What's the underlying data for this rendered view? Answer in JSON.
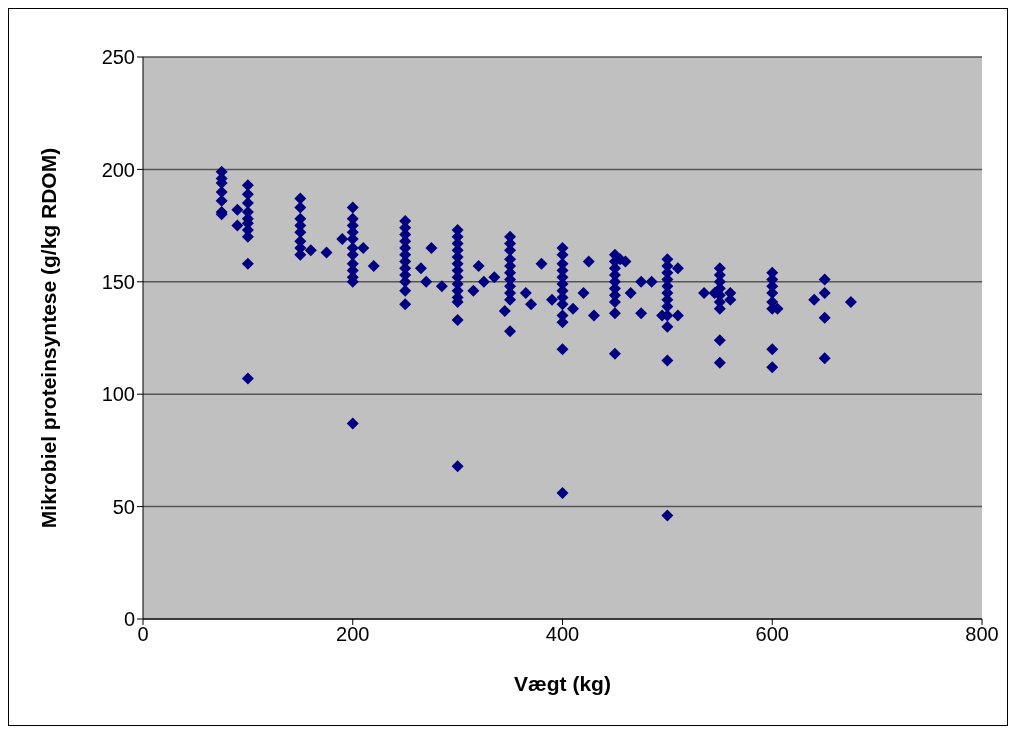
{
  "chart_data": {
    "type": "scatter",
    "xlabel": "Vægt (kg)",
    "ylabel": "Mikrobiel proteinsyntese (g/kg RDOM)",
    "xlim": [
      0,
      800
    ],
    "xticks": [
      0,
      200,
      400,
      600,
      800
    ],
    "ylim": [
      0,
      250
    ],
    "yticks": [
      0,
      50,
      100,
      150,
      200,
      250
    ],
    "grid": "y",
    "marker": "diamond",
    "color": "#000080",
    "x": [
      75,
      75,
      75,
      75,
      75,
      75,
      75,
      90,
      90,
      100,
      100,
      100,
      100,
      100,
      100,
      100,
      100,
      100,
      100,
      150,
      150,
      150,
      150,
      150,
      150,
      150,
      150,
      160,
      175,
      190,
      200,
      200,
      200,
      200,
      200,
      200,
      200,
      200,
      200,
      200,
      200,
      200,
      210,
      220,
      250,
      250,
      250,
      250,
      250,
      250,
      250,
      250,
      250,
      250,
      250,
      250,
      265,
      270,
      275,
      285,
      300,
      300,
      300,
      300,
      300,
      300,
      300,
      300,
      300,
      300,
      300,
      300,
      300,
      300,
      315,
      320,
      325,
      335,
      350,
      350,
      350,
      350,
      350,
      350,
      350,
      350,
      350,
      350,
      350,
      345,
      365,
      370,
      380,
      390,
      400,
      400,
      400,
      400,
      400,
      400,
      400,
      400,
      400,
      400,
      400,
      400,
      400,
      410,
      420,
      425,
      430,
      450,
      450,
      450,
      450,
      450,
      450,
      450,
      450,
      450,
      450,
      455,
      460,
      465,
      475,
      475,
      485,
      500,
      500,
      500,
      500,
      500,
      500,
      500,
      500,
      500,
      500,
      500,
      500,
      495,
      510,
      510,
      535,
      550,
      550,
      550,
      550,
      550,
      550,
      550,
      550,
      550,
      545,
      560,
      560,
      600,
      600,
      600,
      600,
      600,
      600,
      600,
      600,
      605,
      640,
      650,
      650,
      650,
      650,
      675
    ],
    "values": [
      199,
      196,
      194,
      190,
      186,
      181,
      180,
      182,
      175,
      193,
      189,
      185,
      181,
      178,
      176,
      173,
      170,
      158,
      107,
      187,
      183,
      178,
      175,
      172,
      168,
      165,
      162,
      164,
      163,
      169,
      183,
      178,
      175,
      172,
      169,
      165,
      162,
      158,
      155,
      152,
      150,
      87,
      165,
      157,
      177,
      174,
      171,
      168,
      165,
      162,
      159,
      156,
      153,
      150,
      146,
      140,
      156,
      150,
      165,
      148,
      173,
      170,
      167,
      164,
      161,
      158,
      155,
      152,
      149,
      146,
      143,
      141,
      133,
      68,
      146,
      157,
      150,
      152,
      170,
      167,
      164,
      160,
      157,
      154,
      151,
      148,
      145,
      142,
      128,
      137,
      145,
      140,
      158,
      142,
      165,
      162,
      158,
      155,
      152,
      149,
      146,
      143,
      140,
      135,
      132,
      120,
      56,
      138,
      145,
      159,
      135,
      162,
      159,
      156,
      153,
      150,
      147,
      144,
      141,
      136,
      118,
      160,
      159,
      145,
      136,
      150,
      150,
      160,
      157,
      154,
      151,
      148,
      145,
      142,
      139,
      135,
      130,
      115,
      46,
      135,
      156,
      135,
      145,
      156,
      153,
      150,
      147,
      144,
      141,
      138,
      124,
      114,
      145,
      145,
      142,
      154,
      151,
      148,
      145,
      141,
      138,
      120,
      112,
      138,
      142,
      151,
      145,
      134,
      116,
      141
    ]
  }
}
